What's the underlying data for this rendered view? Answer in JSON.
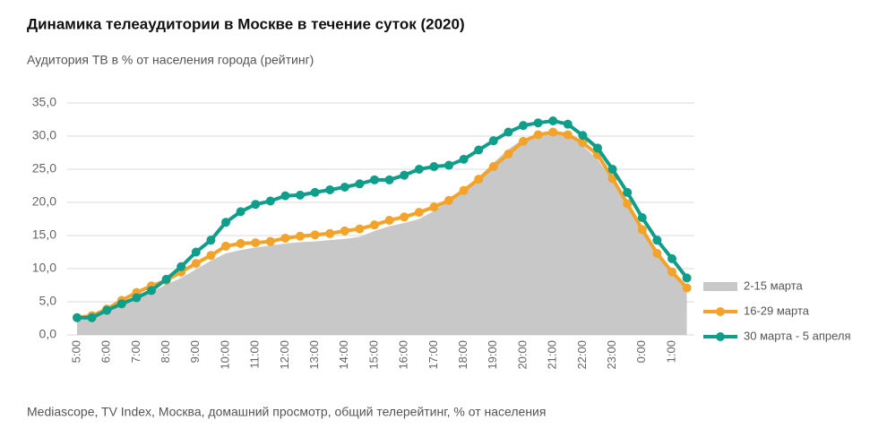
{
  "chart_data": {
    "type": "line",
    "title": "Динамика телеаудитории в Москве в течение суток (2020)",
    "subtitle": "Аудитория ТВ в % от населения города (рейтинг)",
    "footer": "Mediascope, TV Index, Москва, домашний просмотр, общий телерейтинг, % от населения",
    "categories": [
      "5:00",
      null,
      "6:00",
      null,
      "7:00",
      null,
      "8:00",
      null,
      "9:00",
      null,
      "10:00",
      null,
      "11:00",
      null,
      "12:00",
      null,
      "13:00",
      null,
      "14:00",
      null,
      "15:00",
      null,
      "16:00",
      null,
      "17:00",
      null,
      "18:00",
      null,
      "19:00",
      null,
      "20:00",
      null,
      "21:00",
      null,
      "22:00",
      null,
      "23:00",
      null,
      "0:00",
      null,
      "1:00",
      null
    ],
    "series": [
      {
        "name": "2-15 марта",
        "color": "#c8c8c8",
        "style": "area",
        "values": [
          2.2,
          2.6,
          3.5,
          4.5,
          5.6,
          6.5,
          7.6,
          8.6,
          9.9,
          11.2,
          12.3,
          12.8,
          13.2,
          13.5,
          13.8,
          14.0,
          14.1,
          14.3,
          14.5,
          14.8,
          15.7,
          16.4,
          16.9,
          17.5,
          18.7,
          20.3,
          21.8,
          23.8,
          26.0,
          28.0,
          29.6,
          30.1,
          30.8,
          30.2,
          28.6,
          26.5,
          23.2,
          19.5,
          15.5,
          12.0,
          9.2,
          7.5
        ]
      },
      {
        "name": "16-29 марта",
        "color": "#f4a32a",
        "style": "line",
        "values": [
          2.6,
          2.9,
          3.9,
          5.2,
          6.4,
          7.4,
          8.2,
          9.5,
          10.8,
          12.0,
          13.4,
          13.8,
          13.9,
          14.1,
          14.6,
          14.9,
          15.1,
          15.3,
          15.7,
          16.0,
          16.6,
          17.3,
          17.8,
          18.5,
          19.3,
          20.3,
          21.8,
          23.5,
          25.4,
          27.3,
          29.2,
          30.2,
          30.6,
          30.2,
          29.0,
          27.2,
          23.6,
          19.8,
          15.9,
          12.3,
          9.5,
          7.1
        ]
      },
      {
        "name": "30 марта - 5 апреля",
        "color": "#0f9e8a",
        "style": "line",
        "values": [
          2.6,
          2.6,
          3.7,
          4.7,
          5.6,
          6.7,
          8.4,
          10.3,
          12.5,
          14.3,
          17.0,
          18.6,
          19.7,
          20.2,
          21.0,
          21.1,
          21.5,
          21.9,
          22.3,
          22.8,
          23.4,
          23.4,
          24.1,
          25.0,
          25.4,
          25.6,
          26.5,
          27.9,
          29.3,
          30.6,
          31.6,
          32.0,
          32.3,
          31.8,
          30.1,
          28.2,
          25.0,
          21.5,
          17.7,
          14.3,
          11.5,
          8.6
        ]
      }
    ],
    "ylim": [
      0,
      35
    ],
    "yticks": [
      {
        "value": 0,
        "label": "0,0"
      },
      {
        "value": 5,
        "label": "5,0"
      },
      {
        "value": 10,
        "label": "10,0"
      },
      {
        "value": 15,
        "label": "15,0"
      },
      {
        "value": 20,
        "label": "20,0"
      },
      {
        "value": 25,
        "label": "25,0"
      },
      {
        "value": 30,
        "label": "30,0"
      },
      {
        "value": 35,
        "label": "35,0"
      }
    ],
    "grid": true,
    "legend": "right"
  }
}
